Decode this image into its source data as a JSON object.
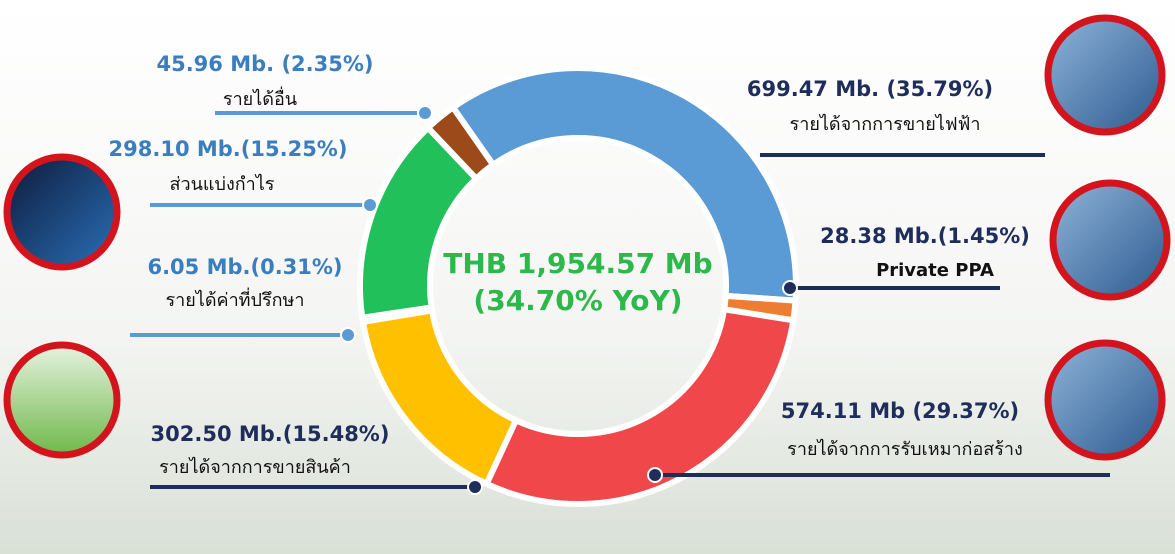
{
  "chart_data": {
    "type": "donut",
    "center_title": "THB 1,954.57 Mb",
    "center_subtitle": "(34.70% YoY)",
    "categories": [
      "รายได้จากการขายไฟฟ้า",
      "Private PPA",
      "รายได้จากการรับเหมาก่อสร้าง",
      "รายได้จากการขายสินค้า",
      "รายได้ค่าที่ปรึกษา",
      "ส่วนแบ่งกำไร",
      "รายได้อื่น"
    ],
    "values": [
      35.79,
      1.45,
      29.37,
      15.48,
      0.31,
      15.25,
      2.35
    ],
    "value_labels": [
      "699.47 Mb. (35.79%)",
      "28.38 Mb.(1.45%)",
      "574.11 Mb (29.37%)",
      "302.50 Mb.(15.48%)",
      "6.05 Mb.(0.31%)",
      "298.10 Mb.(15.25%)",
      "45.96 Mb. (2.35%)"
    ],
    "colors": [
      "#5b9bd5",
      "#ed7d31",
      "#f0474a",
      "#ffc000",
      "#4a78c2",
      "#22c05a",
      "#9c4a1a"
    ]
  }
}
